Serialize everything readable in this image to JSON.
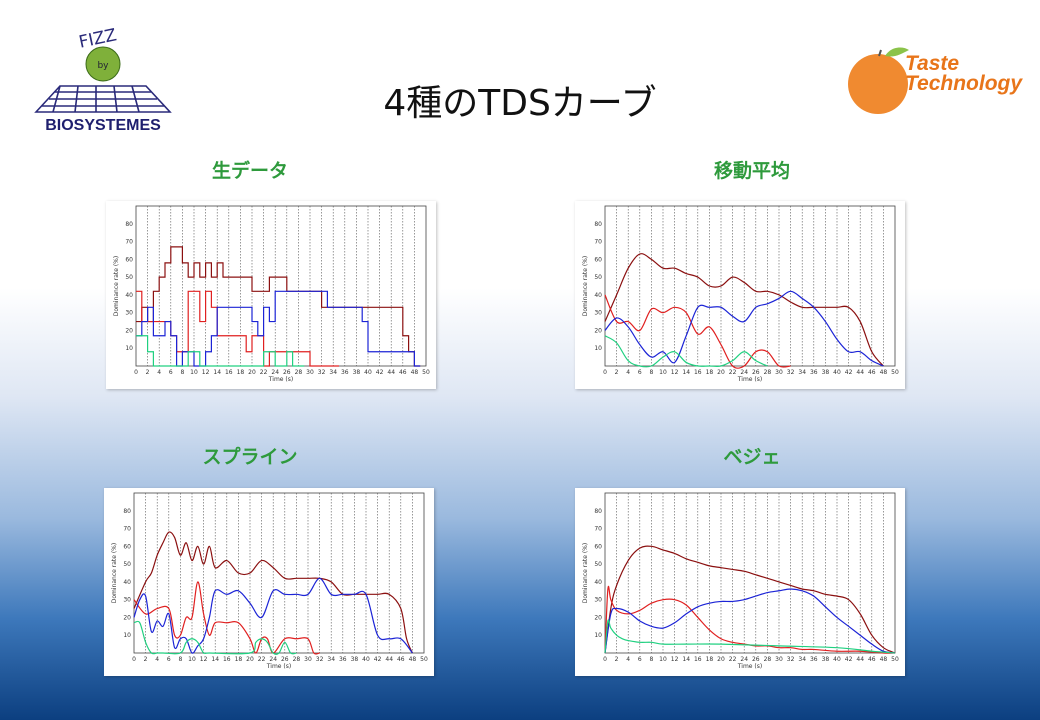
{
  "slide": {
    "title": "4種のTDSカーブ"
  },
  "logos": {
    "left": {
      "top_text": "FIZZ",
      "middle_text": "by",
      "bottom_text": "BIOSYSTEMES",
      "icon": "globe-grid-icon"
    },
    "right": {
      "line1": "Taste",
      "line2": "Technology",
      "icon": "orange-fruit-icon"
    }
  },
  "colors": {
    "dark_red": "#8b1010",
    "red": "#e02020",
    "blue": "#1c24d6",
    "green": "#20d080",
    "heading_green": "#2e9a3c"
  },
  "panels": [
    {
      "heading": "生データ"
    },
    {
      "heading": "移動平均"
    },
    {
      "heading": "スプライン"
    },
    {
      "heading": "ベジェ"
    }
  ],
  "chart_data": [
    {
      "type": "line",
      "style": "step",
      "xlabel": "Time (s)",
      "ylabel": "Dominance rate (%)",
      "xlim": [
        0,
        50
      ],
      "ylim": [
        0,
        90
      ],
      "xticks": [
        0,
        2,
        4,
        6,
        8,
        10,
        12,
        14,
        16,
        18,
        20,
        22,
        24,
        26,
        28,
        30,
        32,
        34,
        36,
        38,
        40,
        42,
        44,
        46,
        48,
        50
      ],
      "yticks": [
        10,
        20,
        30,
        40,
        50,
        60,
        70,
        80
      ],
      "series": [
        {
          "color": "#8b1010",
          "x": [
            0,
            1,
            2,
            3,
            4,
            5,
            6,
            7,
            8,
            9,
            10,
            11,
            12,
            13,
            14,
            15,
            16,
            17,
            18,
            19,
            20,
            21,
            22,
            23,
            24,
            25,
            26,
            27,
            28,
            29,
            30,
            31,
            32,
            33,
            34,
            35,
            36,
            37,
            38,
            39,
            40,
            41,
            42,
            43,
            44,
            45,
            46,
            47,
            48
          ],
          "y": [
            25,
            33,
            25,
            42,
            50,
            58,
            67,
            67,
            58,
            50,
            58,
            50,
            58,
            50,
            58,
            50,
            50,
            50,
            50,
            50,
            42,
            42,
            42,
            50,
            50,
            50,
            42,
            42,
            42,
            42,
            42,
            42,
            33,
            33,
            33,
            33,
            33,
            33,
            33,
            33,
            33,
            33,
            33,
            33,
            33,
            33,
            17,
            8,
            0
          ]
        },
        {
          "color": "#e02020",
          "x": [
            0,
            1,
            2,
            3,
            4,
            5,
            6,
            7,
            8,
            9,
            10,
            11,
            12,
            13,
            14,
            15,
            16,
            17,
            18,
            19,
            20,
            21,
            22,
            23,
            24,
            25,
            26,
            27,
            28,
            29,
            30,
            31,
            32,
            33,
            34
          ],
          "y": [
            42,
            25,
            25,
            25,
            25,
            25,
            17,
            8,
            8,
            42,
            42,
            25,
            42,
            33,
            17,
            17,
            17,
            17,
            17,
            8,
            17,
            17,
            0,
            8,
            8,
            8,
            8,
            8,
            8,
            8,
            0,
            0,
            0,
            0,
            0
          ]
        },
        {
          "color": "#1c24d6",
          "x": [
            0,
            1,
            2,
            3,
            4,
            5,
            6,
            7,
            8,
            9,
            10,
            11,
            12,
            13,
            14,
            15,
            16,
            17,
            18,
            19,
            20,
            21,
            22,
            23,
            24,
            25,
            26,
            27,
            28,
            29,
            30,
            31,
            32,
            33,
            34,
            35,
            36,
            37,
            38,
            39,
            40,
            41,
            42,
            43,
            44,
            45,
            46,
            47,
            48
          ],
          "y": [
            17,
            25,
            33,
            17,
            17,
            25,
            17,
            0,
            8,
            8,
            0,
            0,
            8,
            17,
            33,
            33,
            33,
            33,
            33,
            33,
            25,
            17,
            33,
            25,
            42,
            42,
            42,
            42,
            42,
            42,
            42,
            42,
            42,
            33,
            33,
            33,
            33,
            33,
            33,
            25,
            8,
            8,
            8,
            8,
            8,
            8,
            8,
            8,
            0
          ]
        },
        {
          "color": "#20d080",
          "x": [
            0,
            1,
            2,
            3,
            4,
            5,
            6,
            7,
            8,
            9,
            10,
            11,
            12,
            13,
            14,
            15,
            16,
            17,
            18,
            19,
            20,
            21,
            22,
            23,
            24,
            25,
            26,
            27,
            28
          ],
          "y": [
            17,
            17,
            8,
            0,
            0,
            0,
            0,
            0,
            0,
            8,
            8,
            0,
            0,
            0,
            0,
            0,
            0,
            0,
            0,
            0,
            0,
            0,
            8,
            8,
            0,
            0,
            8,
            0,
            0
          ]
        }
      ]
    },
    {
      "type": "line",
      "style": "moving-average",
      "xlabel": "Time (s)",
      "ylabel": "Dominance rate (%)",
      "xlim": [
        0,
        50
      ],
      "ylim": [
        0,
        90
      ],
      "xticks": [
        0,
        2,
        4,
        6,
        8,
        10,
        12,
        14,
        16,
        18,
        20,
        22,
        24,
        26,
        28,
        30,
        32,
        34,
        36,
        38,
        40,
        42,
        44,
        46,
        48,
        50
      ],
      "yticks": [
        10,
        20,
        30,
        40,
        50,
        60,
        70,
        80
      ],
      "series": [
        {
          "color": "#8b1010",
          "x": [
            0,
            2,
            4,
            6,
            8,
            10,
            12,
            14,
            16,
            18,
            20,
            22,
            24,
            26,
            28,
            30,
            32,
            34,
            36,
            38,
            40,
            42,
            44,
            46,
            48
          ],
          "y": [
            25,
            40,
            55,
            63,
            60,
            55,
            55,
            52,
            50,
            45,
            45,
            50,
            47,
            42,
            42,
            40,
            36,
            33,
            33,
            33,
            33,
            33,
            25,
            8,
            0
          ]
        },
        {
          "color": "#e02020",
          "x": [
            0,
            2,
            4,
            6,
            8,
            10,
            12,
            14,
            16,
            18,
            20,
            22,
            24,
            26,
            28,
            30,
            32
          ],
          "y": [
            40,
            25,
            25,
            20,
            32,
            30,
            33,
            30,
            18,
            22,
            12,
            0,
            0,
            8,
            8,
            0,
            0
          ]
        },
        {
          "color": "#1c24d6",
          "x": [
            0,
            2,
            4,
            6,
            8,
            10,
            12,
            14,
            16,
            18,
            20,
            22,
            24,
            26,
            28,
            30,
            32,
            34,
            36,
            38,
            40,
            42,
            44,
            46,
            48
          ],
          "y": [
            20,
            27,
            22,
            12,
            5,
            8,
            2,
            17,
            33,
            33,
            33,
            28,
            25,
            33,
            35,
            38,
            42,
            38,
            33,
            25,
            15,
            8,
            8,
            3,
            0
          ]
        },
        {
          "color": "#20d080",
          "x": [
            0,
            2,
            4,
            6,
            8,
            10,
            12,
            14,
            16,
            18,
            20,
            22,
            24,
            26,
            28
          ],
          "y": [
            17,
            13,
            3,
            0,
            0,
            5,
            8,
            2,
            0,
            0,
            0,
            3,
            8,
            3,
            0
          ]
        }
      ]
    },
    {
      "type": "line",
      "style": "spline",
      "xlabel": "Time (s)",
      "ylabel": "Dominance rate (%)",
      "xlim": [
        0,
        50
      ],
      "ylim": [
        0,
        90
      ],
      "xticks": [
        0,
        2,
        4,
        6,
        8,
        10,
        12,
        14,
        16,
        18,
        20,
        22,
        24,
        26,
        28,
        30,
        32,
        34,
        36,
        38,
        40,
        42,
        44,
        46,
        48,
        50
      ],
      "yticks": [
        10,
        20,
        30,
        40,
        50,
        60,
        70,
        80
      ],
      "series": [
        {
          "color": "#8b1010",
          "x": [
            0,
            2,
            3,
            4,
            5,
            6,
            7,
            8,
            9,
            10,
            11,
            12,
            13,
            14,
            16,
            18,
            20,
            22,
            24,
            26,
            28,
            30,
            32,
            34,
            36,
            38,
            40,
            42,
            44,
            46,
            47,
            48
          ],
          "y": [
            25,
            40,
            45,
            55,
            62,
            68,
            65,
            55,
            62,
            52,
            60,
            50,
            60,
            48,
            52,
            45,
            45,
            52,
            48,
            42,
            42,
            42,
            42,
            40,
            33,
            33,
            33,
            33,
            33,
            25,
            8,
            0
          ]
        },
        {
          "color": "#e02020",
          "x": [
            0,
            2,
            4,
            6,
            7,
            8,
            9,
            10,
            11,
            12,
            13,
            14,
            16,
            18,
            20,
            21,
            22,
            23,
            24,
            26,
            28,
            30,
            31,
            32
          ],
          "y": [
            30,
            22,
            25,
            25,
            10,
            10,
            20,
            20,
            40,
            22,
            10,
            17,
            17,
            17,
            8,
            0,
            8,
            8,
            0,
            8,
            8,
            8,
            0,
            0
          ]
        },
        {
          "color": "#1c24d6",
          "x": [
            0,
            1,
            2,
            3,
            4,
            5,
            6,
            7,
            8,
            9,
            10,
            11,
            12,
            13,
            14,
            16,
            18,
            20,
            22,
            24,
            26,
            28,
            30,
            32,
            34,
            36,
            38,
            40,
            42,
            44,
            46,
            48
          ],
          "y": [
            20,
            30,
            32,
            12,
            18,
            15,
            22,
            3,
            8,
            8,
            0,
            4,
            8,
            20,
            35,
            33,
            35,
            28,
            20,
            35,
            33,
            33,
            33,
            42,
            33,
            33,
            33,
            33,
            10,
            8,
            8,
            0
          ]
        },
        {
          "color": "#20d080",
          "x": [
            0,
            1,
            2,
            3,
            4,
            5,
            8,
            9,
            10,
            11,
            12,
            13,
            20,
            21,
            22,
            23,
            24,
            25,
            26,
            27,
            28
          ],
          "y": [
            17,
            17,
            6,
            0,
            0,
            0,
            0,
            6,
            8,
            6,
            0,
            0,
            0,
            6,
            8,
            6,
            0,
            0,
            6,
            0,
            0
          ]
        }
      ]
    },
    {
      "type": "line",
      "style": "bezier",
      "xlabel": "Time (s)",
      "ylabel": "Dominance rate (%)",
      "xlim": [
        0,
        50
      ],
      "ylim": [
        0,
        90
      ],
      "xticks": [
        0,
        2,
        4,
        6,
        8,
        10,
        12,
        14,
        16,
        18,
        20,
        22,
        24,
        26,
        28,
        30,
        32,
        34,
        36,
        38,
        40,
        42,
        44,
        46,
        48,
        50
      ],
      "yticks": [
        10,
        20,
        30,
        40,
        50,
        60,
        70,
        80
      ],
      "series": [
        {
          "color": "#8b1010",
          "x": [
            0,
            1,
            2,
            4,
            6,
            8,
            10,
            12,
            14,
            16,
            18,
            20,
            22,
            24,
            26,
            28,
            30,
            32,
            34,
            36,
            38,
            40,
            42,
            44,
            46,
            48,
            50
          ],
          "y": [
            0,
            25,
            38,
            52,
            59,
            60,
            58,
            56,
            53,
            51,
            49,
            48,
            47,
            46,
            44,
            42,
            40,
            38,
            36,
            35,
            33,
            32,
            30,
            22,
            10,
            3,
            0
          ]
        },
        {
          "color": "#e02020",
          "x": [
            0,
            0.5,
            1,
            2,
            4,
            6,
            8,
            10,
            12,
            14,
            16,
            18,
            20,
            22,
            24,
            26,
            28,
            30,
            32,
            34,
            36,
            40,
            44,
            48,
            50
          ],
          "y": [
            0,
            36,
            30,
            24,
            22,
            24,
            28,
            30,
            30,
            27,
            20,
            13,
            8,
            6,
            5,
            4,
            4,
            3,
            3,
            2,
            2,
            1,
            1,
            0,
            0
          ]
        },
        {
          "color": "#1c24d6",
          "x": [
            0,
            1,
            2,
            4,
            6,
            8,
            10,
            12,
            14,
            16,
            18,
            20,
            22,
            24,
            26,
            28,
            30,
            32,
            34,
            36,
            38,
            40,
            42,
            44,
            46,
            48,
            50
          ],
          "y": [
            0,
            22,
            25,
            23,
            18,
            15,
            14,
            17,
            22,
            26,
            28,
            29,
            29,
            30,
            32,
            34,
            35,
            36,
            35,
            32,
            26,
            20,
            15,
            10,
            5,
            1,
            0
          ]
        },
        {
          "color": "#20d080",
          "x": [
            0,
            0.5,
            1,
            2,
            3,
            4,
            6,
            8,
            10,
            14,
            20,
            30,
            40,
            46,
            50
          ],
          "y": [
            0,
            18,
            14,
            10,
            8,
            7,
            6,
            6,
            5,
            5,
            5,
            4,
            3,
            1,
            0
          ]
        }
      ]
    }
  ]
}
